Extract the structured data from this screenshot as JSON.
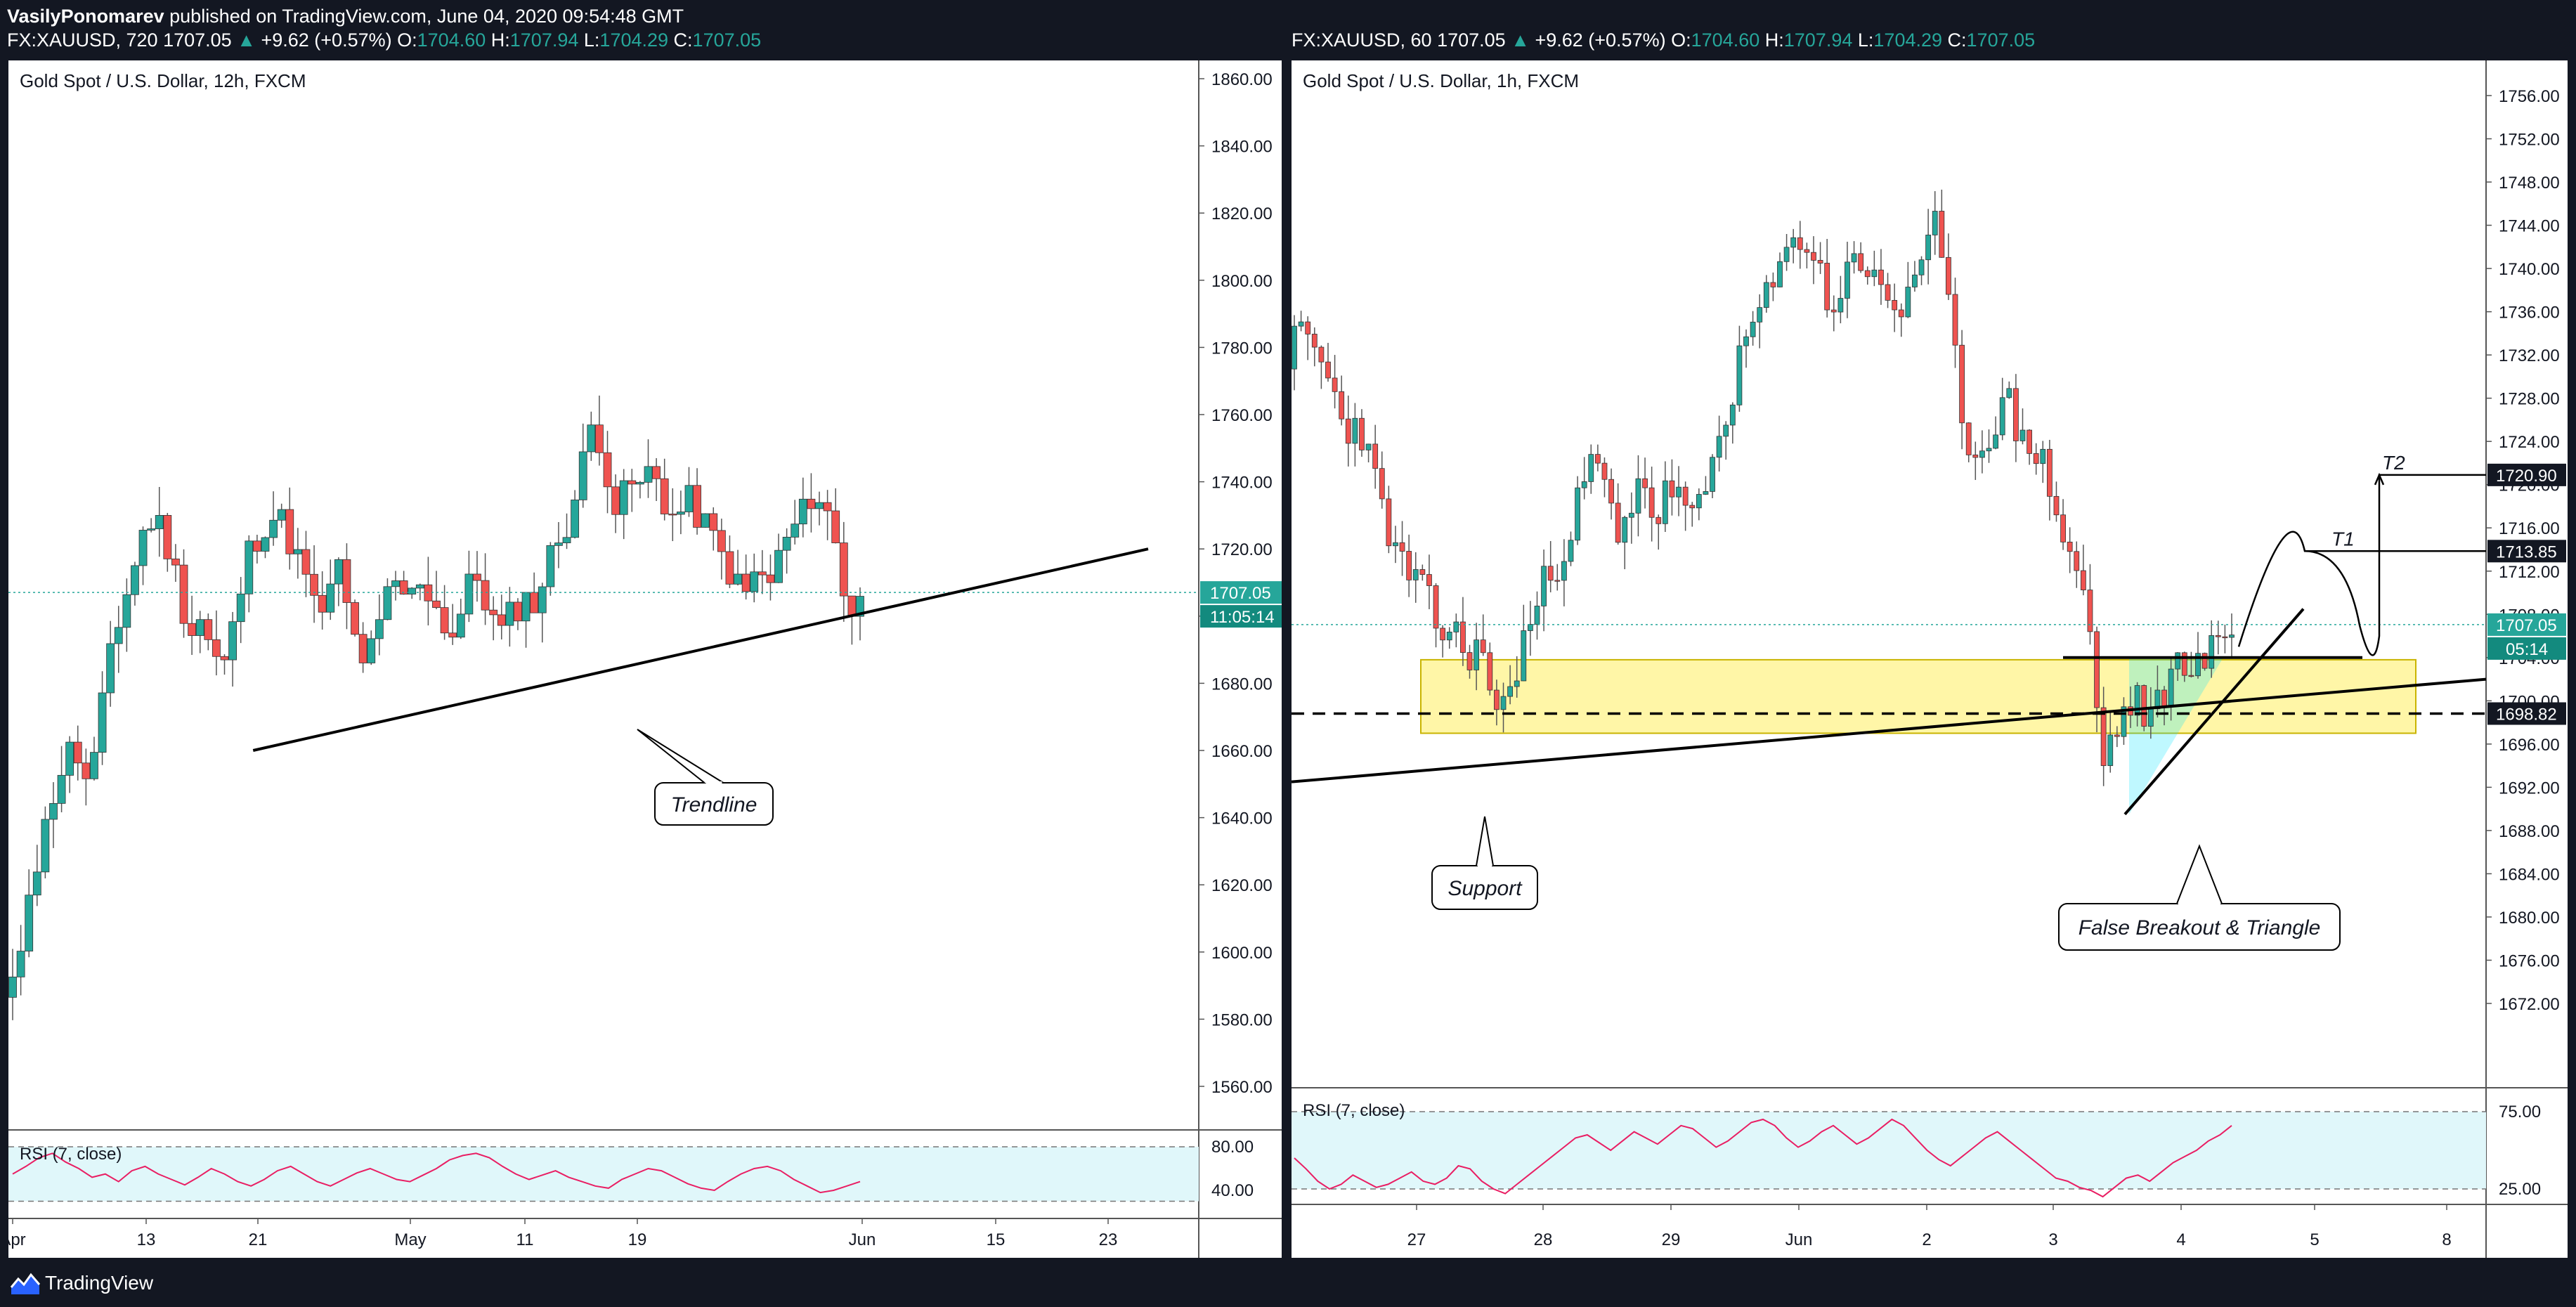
{
  "header": {
    "author": "VasilyPonomarev",
    "published": "published on TradingView.com, June 04, 2020 09:54:48 GMT",
    "left_ticker": "FX:XAUUSD, 720",
    "right_ticker": "FX:XAUUSD, 60",
    "last": "1707.05",
    "change": "+9.62 (+0.57%)",
    "o_label": "O:",
    "o": "1704.60",
    "h_label": "H:",
    "h": "1707.94",
    "l_label": "L:",
    "l": "1704.29",
    "c_label": "C:",
    "c": "1707.05"
  },
  "footer": {
    "brand": "TradingView"
  },
  "colors": {
    "up": "#26a69a",
    "down": "#ef5350",
    "bg": "#131722",
    "rsi": "#e91e63",
    "zone": "#ffeb3b"
  },
  "chart_data": [
    {
      "type": "candlestick",
      "title": "Gold Spot / U.S. Dollar, 12h, FXCM",
      "ylim": [
        1545,
        1870
      ],
      "y_ticks": [
        "1860.00",
        "1840.00",
        "1820.00",
        "1800.00",
        "1780.00",
        "1760.00",
        "1740.00",
        "1720.00",
        "1700.00",
        "1680.00",
        "1660.00",
        "1640.00",
        "1620.00",
        "1600.00",
        "1580.00",
        "1560.00"
      ],
      "x_ticks": [
        "Apr",
        "13",
        "21",
        "May",
        "11",
        "19",
        "Jun",
        "15",
        "23"
      ],
      "last_price_label": "1707.05",
      "countdown_label": "11:05:14",
      "path_points": [
        1585,
        1590,
        1620,
        1628,
        1645,
        1655,
        1662,
        1650,
        1658,
        1690,
        1700,
        1712,
        1725,
        1730,
        1722,
        1710,
        1695,
        1700,
        1688,
        1685,
        1700,
        1718,
        1725,
        1730,
        1728,
        1720,
        1712,
        1700,
        1705,
        1715,
        1695,
        1688,
        1690,
        1705,
        1710,
        1704,
        1712,
        1705,
        1698,
        1694,
        1708,
        1712,
        1700,
        1695,
        1702,
        1705,
        1704,
        1716,
        1724,
        1730,
        1745,
        1760,
        1745,
        1730,
        1740,
        1738,
        1745,
        1735,
        1728,
        1735,
        1730,
        1725,
        1718,
        1712,
        1705,
        1714,
        1708,
        1718,
        1725,
        1730,
        1738,
        1732,
        1720,
        1700,
        1707
      ],
      "trendline": [
        [
          21,
          1660
        ],
        [
          41,
          1720
        ]
      ],
      "annotations": [
        {
          "text": "Trendline"
        }
      ],
      "rsi": {
        "title": "RSI (7, close)",
        "ticks": [
          "80.00",
          "40.00"
        ],
        "values": [
          55,
          62,
          70,
          74,
          66,
          60,
          52,
          55,
          48,
          58,
          62,
          55,
          50,
          45,
          52,
          60,
          55,
          48,
          44,
          50,
          58,
          62,
          55,
          48,
          44,
          50,
          56,
          60,
          55,
          50,
          48,
          54,
          60,
          68,
          72,
          74,
          70,
          62,
          55,
          50,
          54,
          58,
          52,
          48,
          44,
          42,
          50,
          55,
          60,
          58,
          52,
          46,
          42,
          40,
          48,
          55,
          60,
          62,
          58,
          50,
          44,
          38,
          40,
          44,
          48
        ]
      }
    },
    {
      "type": "candlestick",
      "title": "Gold Spot / U.S. Dollar, 1h, FXCM",
      "ylim": [
        1666,
        1760
      ],
      "y_ticks": [
        "1756.00",
        "1752.00",
        "1748.00",
        "1744.00",
        "1740.00",
        "1736.00",
        "1732.00",
        "1728.00",
        "1724.00",
        "1720.00",
        "1716.00",
        "1712.00",
        "1708.00",
        "1704.00",
        "1700.00",
        "1696.00",
        "1692.00",
        "1688.00",
        "1684.00",
        "1680.00",
        "1676.00",
        "1672.00"
      ],
      "x_ticks": [
        "27",
        "28",
        "29",
        "Jun",
        "2",
        "3",
        "4",
        "5",
        "8"
      ],
      "price_labels": [
        "1720.90",
        "1713.85",
        "1707.05",
        "05:14",
        "1698.82"
      ],
      "path_points": [
        1732,
        1734,
        1733,
        1731,
        1728,
        1725,
        1726,
        1722,
        1718,
        1714,
        1712,
        1711,
        1709,
        1706,
        1707,
        1704,
        1705,
        1702,
        1699,
        1701,
        1706,
        1708,
        1712,
        1713,
        1716,
        1720,
        1722,
        1720,
        1714,
        1718,
        1722,
        1716,
        1719,
        1720,
        1716,
        1718,
        1722,
        1726,
        1730,
        1734,
        1736,
        1738,
        1740,
        1744,
        1742,
        1740,
        1736,
        1738,
        1742,
        1740,
        1738,
        1737,
        1736,
        1740,
        1741,
        1744,
        1736,
        1728,
        1722,
        1724,
        1726,
        1728,
        1724,
        1724,
        1722,
        1718,
        1714,
        1712,
        1706,
        1694,
        1697,
        1699,
        1700,
        1698,
        1700,
        1703,
        1704,
        1703,
        1704,
        1706,
        1707
      ],
      "support_line": [
        [
          1,
          1692.5
        ],
        [
          116,
          1702
        ]
      ],
      "dashed_level": 1698.82,
      "zone": [
        [
          12,
          1697
        ],
        [
          73,
          1703.8
        ]
      ],
      "resistance_segment": [
        [
          61,
          1704
        ],
        [
          85,
          1704
        ]
      ],
      "triangle_base": [
        [
          65,
          1689.5
        ],
        [
          78,
          1709
        ]
      ],
      "projection": [
        [
          74,
          1706
        ],
        [
          78,
          1708
        ],
        [
          84,
          1713.85
        ],
        [
          89,
          1712
        ],
        [
          91,
          1704
        ],
        [
          93,
          1720.9
        ]
      ],
      "targets": [
        {
          "text": "T1",
          "value": 1713.85
        },
        {
          "text": "T2",
          "value": 1720.9
        }
      ],
      "annotations": [
        {
          "text": "Support"
        },
        {
          "text": "False Breakout & Triangle"
        }
      ],
      "rsi": {
        "title": "RSI (7, close)",
        "ticks": [
          "75.00",
          "25.00"
        ],
        "values": [
          45,
          38,
          30,
          25,
          28,
          34,
          30,
          26,
          28,
          32,
          36,
          30,
          28,
          32,
          40,
          38,
          30,
          25,
          22,
          28,
          34,
          40,
          46,
          52,
          58,
          60,
          55,
          50,
          56,
          62,
          58,
          54,
          60,
          66,
          64,
          58,
          52,
          56,
          62,
          68,
          70,
          66,
          58,
          52,
          56,
          62,
          66,
          60,
          54,
          58,
          64,
          70,
          66,
          58,
          50,
          44,
          40,
          46,
          52,
          58,
          62,
          56,
          50,
          44,
          38,
          32,
          30,
          26,
          24,
          20,
          26,
          32,
          34,
          30,
          36,
          42,
          46,
          50,
          56,
          60,
          66
        ]
      }
    }
  ]
}
